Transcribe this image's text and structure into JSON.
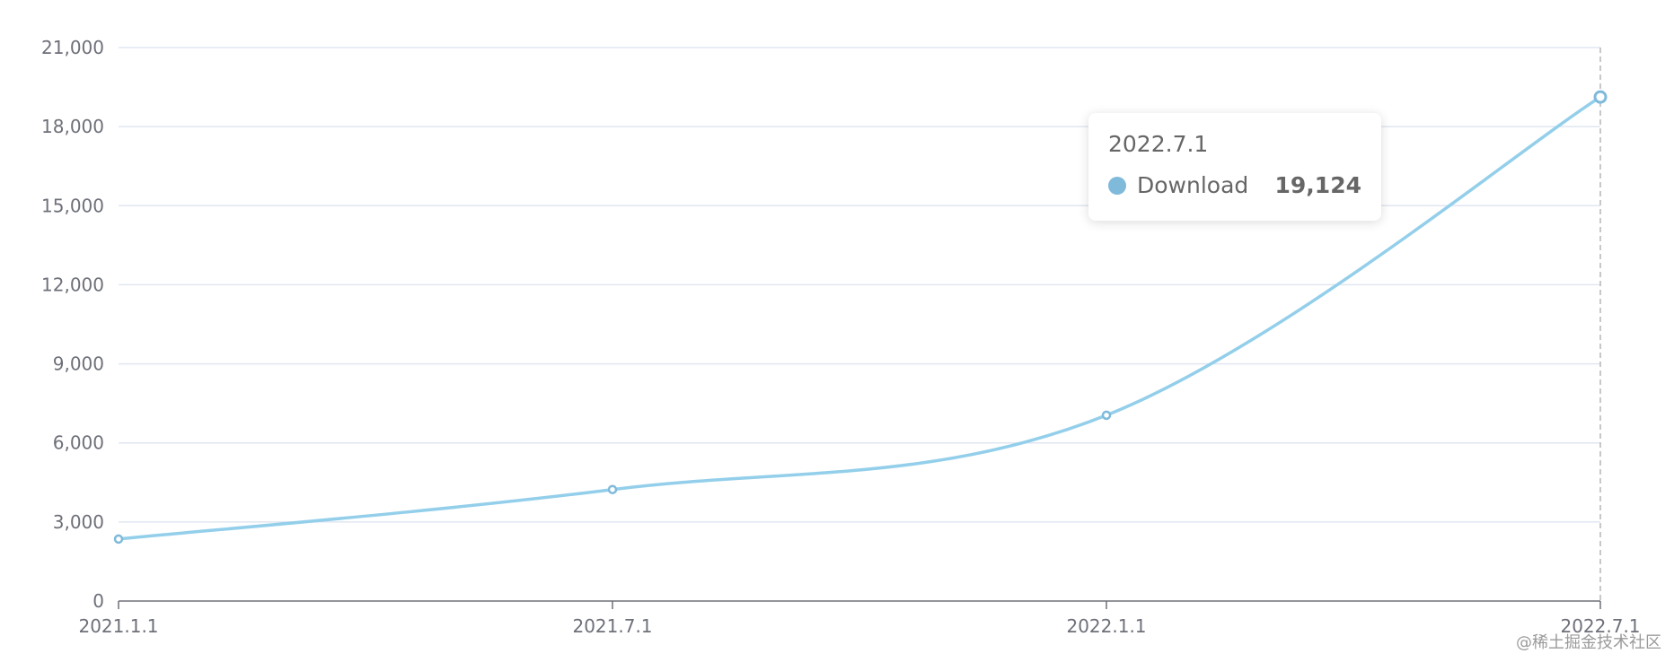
{
  "chart_data": {
    "type": "line",
    "x": [
      "2021.1.1",
      "2021.7.1",
      "2022.1.1",
      "2022.7.1"
    ],
    "series": [
      {
        "name": "Download",
        "values": [
          2351,
          4230,
          7050,
          19124
        ],
        "color": "#93cfea"
      }
    ],
    "yticks": [
      "0",
      "3,000",
      "6,000",
      "9,000",
      "12,000",
      "15,000",
      "18,000",
      "21,000"
    ],
    "ylim": [
      0,
      21000
    ],
    "smooth": true,
    "grid": true,
    "title": "",
    "xlabel": "",
    "ylabel": ""
  },
  "tooltip": {
    "title": "2022.7.1",
    "series_name": "Download",
    "value": "19,124",
    "dot_color": "#7fbadb"
  },
  "watermark": "@稀土掘金技术社区",
  "colors": {
    "grid": "#e0e6f1",
    "axis": "#6e7079",
    "line": "#93cfea",
    "marker_stroke": "#7fbadb"
  }
}
